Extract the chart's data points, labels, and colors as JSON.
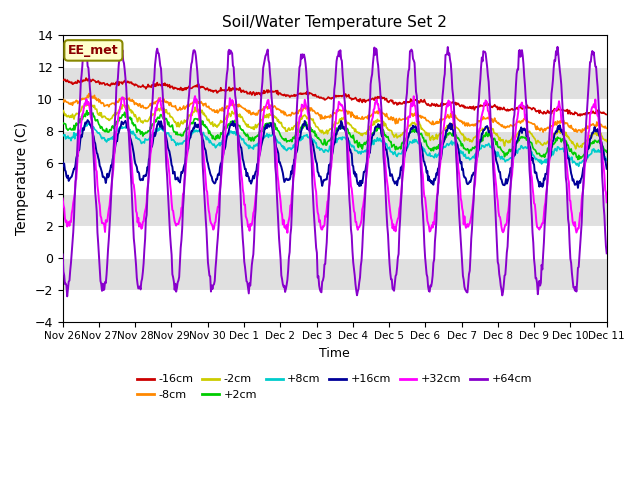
{
  "title": "Soil/Water Temperature Set 2",
  "ylabel": "Temperature (C)",
  "xlabel": "Time",
  "watermark": "EE_met",
  "ylim": [
    -4,
    14
  ],
  "yticks": [
    -4,
    -2,
    0,
    2,
    4,
    6,
    8,
    10,
    12,
    14
  ],
  "background_color": "#ffffff",
  "plot_bg_color": "#e8e8e8",
  "band_colors": [
    "#ffffff",
    "#e0e0e0"
  ],
  "series": [
    {
      "label": "-16cm",
      "color": "#cc0000",
      "base": 11.2,
      "trend": -0.145,
      "amp": 0.12,
      "freq": 1.0,
      "phase": 0.0,
      "noise": 0.06
    },
    {
      "label": "-8cm",
      "color": "#ff8800",
      "base": 10.0,
      "trend": -0.125,
      "amp": 0.25,
      "freq": 1.0,
      "phase": 0.1,
      "noise": 0.07
    },
    {
      "label": "-2cm",
      "color": "#cccc00",
      "base": 9.3,
      "trend": -0.13,
      "amp": 0.45,
      "freq": 1.0,
      "phase": 0.15,
      "noise": 0.08
    },
    {
      "label": "+2cm",
      "color": "#00cc00",
      "base": 8.65,
      "trend": -0.125,
      "amp": 0.55,
      "freq": 1.0,
      "phase": 0.2,
      "noise": 0.09
    },
    {
      "label": "+8cm",
      "color": "#00cccc",
      "base": 8.0,
      "trend": -0.115,
      "amp": 0.45,
      "freq": 1.0,
      "phase": 0.25,
      "noise": 0.07
    },
    {
      "label": "+16cm",
      "color": "#000099",
      "base": 6.8,
      "trend": -0.03,
      "amp": 1.8,
      "freq": 1.0,
      "phase": 0.4,
      "noise": 0.12
    },
    {
      "label": "+32cm",
      "color": "#ff00ff",
      "base": 6.0,
      "trend": -0.02,
      "amp": 4.0,
      "freq": 1.0,
      "phase": 0.6,
      "noise": 0.15
    },
    {
      "label": "+64cm",
      "color": "#8800cc",
      "base": 5.5,
      "trend": 0.0,
      "amp": 7.5,
      "freq": 1.0,
      "phase": 0.8,
      "noise": 0.2
    }
  ],
  "tick_labels": [
    "Nov 26",
    "Nov 27",
    "Nov 28",
    "Nov 29",
    "Nov 30",
    "Dec 1",
    "Dec 2",
    "Dec 3",
    "Dec 4",
    "Dec 5",
    "Dec 6",
    "Dec 7",
    "Dec 8",
    "Dec 9",
    "Dec 10",
    "Dec 11"
  ],
  "tick_positions": [
    0,
    1,
    2,
    3,
    4,
    5,
    6,
    7,
    8,
    9,
    10,
    11,
    12,
    13,
    14,
    15
  ],
  "n_days": 15,
  "pts_per_day": 48
}
